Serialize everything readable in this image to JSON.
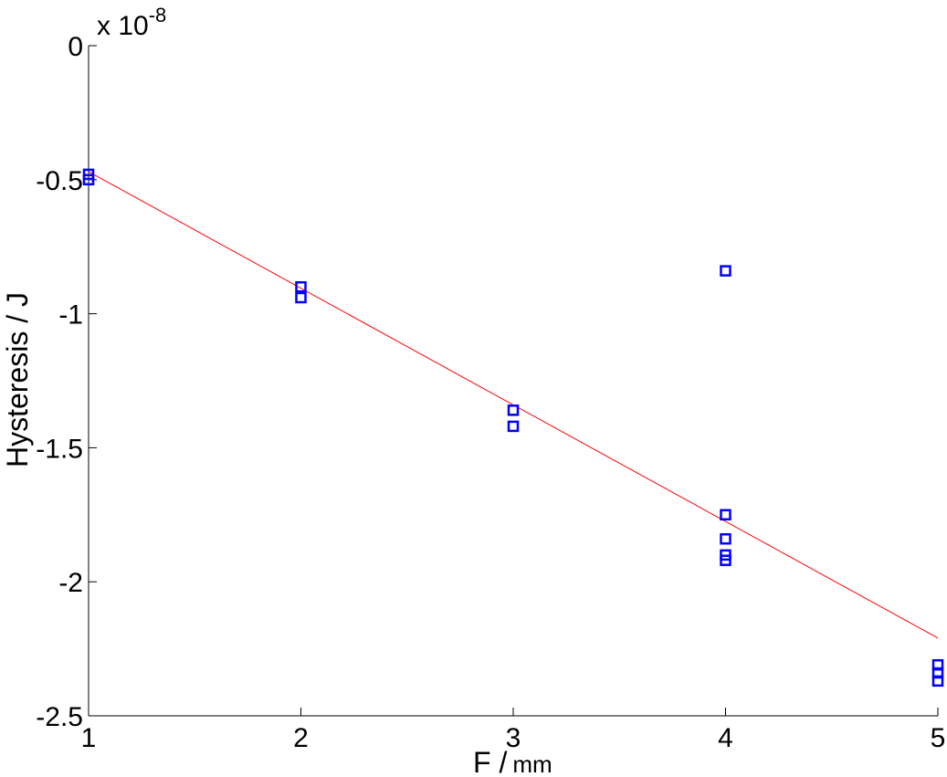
{
  "chart_data": {
    "type": "scatter",
    "xlabel_main": "F /",
    "xlabel_unit": "mm",
    "ylabel": "Hysteresis / J",
    "y_exponent_prefix": "x 10",
    "y_exponent_power": "-8",
    "xlim": [
      1,
      5
    ],
    "ylim": [
      -2.5,
      0
    ],
    "x_ticks": [
      1,
      2,
      3,
      4,
      5
    ],
    "x_tick_labels": [
      "1",
      "2",
      "3",
      "4",
      "5"
    ],
    "y_ticks": [
      0,
      -0.5,
      -1,
      -1.5,
      -2,
      -2.5
    ],
    "y_tick_labels": [
      "0",
      "-0.5",
      "-1",
      "-1.5",
      "-2",
      "-2.5"
    ],
    "grid": false,
    "series": [
      {
        "kind": "markers",
        "marker": "square",
        "color": "#0000ff",
        "points": [
          {
            "x": 1,
            "y": -0.48
          },
          {
            "x": 1,
            "y": -0.5
          },
          {
            "x": 2,
            "y": -0.9
          },
          {
            "x": 2,
            "y": -0.94
          },
          {
            "x": 3,
            "y": -1.36
          },
          {
            "x": 3,
            "y": -1.42
          },
          {
            "x": 4,
            "y": -0.84
          },
          {
            "x": 4,
            "y": -1.75
          },
          {
            "x": 4,
            "y": -1.84
          },
          {
            "x": 4,
            "y": -1.9
          },
          {
            "x": 4,
            "y": -1.92
          },
          {
            "x": 5,
            "y": -2.31
          },
          {
            "x": 5,
            "y": -2.34
          },
          {
            "x": 5,
            "y": -2.37
          }
        ]
      },
      {
        "kind": "line",
        "color": "#ff0000",
        "points": [
          {
            "x": 1,
            "y": -0.47
          },
          {
            "x": 5,
            "y": -2.21
          }
        ]
      }
    ]
  }
}
